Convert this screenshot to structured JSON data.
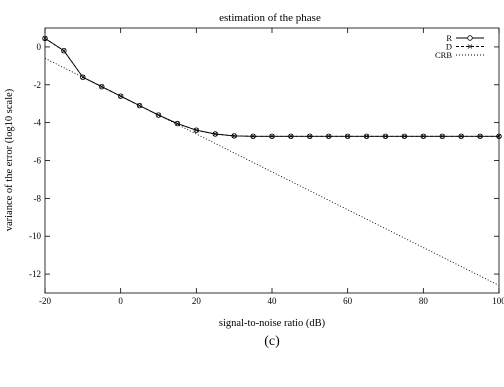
{
  "chart_data": {
    "type": "line",
    "title": "estimation of the phase",
    "xlabel": "signal-to-noise ratio (dB)",
    "ylabel": "variance of the error (log10 scale)",
    "caption": "(c)",
    "xlim": [
      -20,
      100
    ],
    "ylim": [
      -13,
      1
    ],
    "xticks": [
      -20,
      0,
      20,
      40,
      60,
      80,
      100
    ],
    "yticks": [
      0,
      -2,
      -4,
      -6,
      -8,
      -10,
      -12
    ],
    "grid": false,
    "legend_position": "top-right",
    "x": [
      -20,
      -15,
      -10,
      -5,
      0,
      5,
      10,
      15,
      20,
      25,
      30,
      35,
      40,
      45,
      50,
      55,
      60,
      65,
      70,
      75,
      80,
      85,
      90,
      95,
      100
    ],
    "series": [
      {
        "name": "R",
        "style": "solid-circle",
        "values": [
          0.45,
          -0.2,
          -1.6,
          -2.1,
          -2.6,
          -3.1,
          -3.6,
          -4.05,
          -4.4,
          -4.6,
          -4.7,
          -4.72,
          -4.72,
          -4.72,
          -4.72,
          -4.72,
          -4.72,
          -4.72,
          -4.72,
          -4.72,
          -4.72,
          -4.72,
          -4.72,
          -4.72,
          -4.72
        ]
      },
      {
        "name": "D",
        "style": "dashed-cross",
        "values": [
          0.45,
          -0.2,
          -1.6,
          -2.1,
          -2.6,
          -3.1,
          -3.6,
          -4.05,
          -4.4,
          -4.6,
          -4.7,
          -4.72,
          -4.72,
          -4.72,
          -4.72,
          -4.72,
          -4.72,
          -4.72,
          -4.72,
          -4.72,
          -4.72,
          -4.72,
          -4.72,
          -4.72,
          -4.72
        ]
      },
      {
        "name": "CRB",
        "style": "dotted",
        "x": [
          -20,
          100
        ],
        "values": [
          -0.6,
          -12.6
        ]
      }
    ]
  }
}
